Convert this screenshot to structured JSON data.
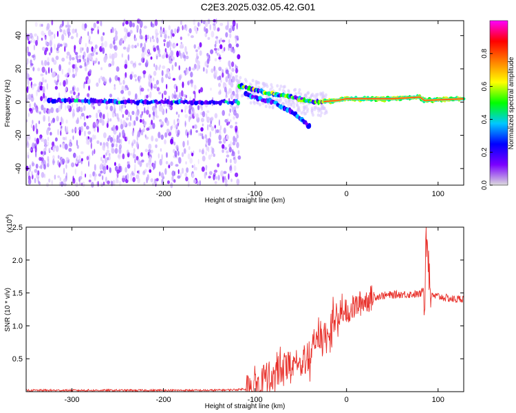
{
  "title": "C2E3.2025.032.05.42.G01",
  "chart_data": [
    {
      "type": "heatmap",
      "xlabel": "Height of straight line (km)",
      "ylabel": "Frequency (Hz)",
      "xlim": [
        -350,
        128
      ],
      "ylim": [
        -50,
        49
      ],
      "xticks": [
        -300,
        -200,
        -100,
        0,
        100
      ],
      "yticks": [
        -40,
        -20,
        0,
        20,
        40
      ],
      "grid": false,
      "noise_region_x": [
        -350,
        -117
      ],
      "tracks": [
        {
          "name": "",
          "x": [
            -325,
            -300,
            -250,
            -200,
            -170,
            -117
          ],
          "y": [
            1,
            1,
            0,
            0,
            0,
            0
          ]
        },
        {
          "name": "",
          "x": [
            -117,
            -100,
            -80,
            -60,
            -45,
            -30,
            -10,
            0,
            20,
            50,
            80,
            85,
            128
          ],
          "y": [
            10,
            7,
            5,
            3,
            1,
            0,
            1,
            2,
            2,
            2,
            3,
            1,
            2
          ]
        },
        {
          "name": "",
          "x": [
            -110,
            -95,
            -80,
            -70,
            -60,
            -50,
            -40
          ],
          "y": [
            5,
            2,
            0,
            -3,
            -6,
            -10,
            -15
          ]
        }
      ],
      "colorbar": {
        "label": "Normalized spectral amplitude",
        "ticks": [
          0.0,
          0.2,
          0.4,
          0.6,
          0.8
        ],
        "range": [
          0,
          1
        ],
        "colors": [
          "#dcdcdc",
          "#7a00ff",
          "#0000ff",
          "#00c8ff",
          "#00ff00",
          "#ffff00",
          "#ff8000",
          "#ff0000",
          "#ff00ff"
        ]
      }
    },
    {
      "type": "line",
      "xlabel": "Height of straight line (km)",
      "ylabel": "SNR (10 * v/v)",
      "scale_label": "(x10",
      "scale_exp": "4",
      "scale_close": ")",
      "xlim": [
        -350,
        128
      ],
      "ylim": [
        0,
        2.5
      ],
      "xticks": [
        -300,
        -200,
        -100,
        0,
        100
      ],
      "yticks": [
        0.5,
        1.0,
        1.5,
        2.0,
        2.5
      ],
      "grid": false,
      "color": "#e8302a",
      "series": [
        {
          "name": "",
          "x": [
            -350,
            -300,
            -250,
            -200,
            -150,
            -120,
            -105,
            -95,
            -85,
            -75,
            -65,
            -55,
            -45,
            -35,
            -25,
            -15,
            -5,
            0,
            10,
            20,
            30,
            40,
            50,
            60,
            70,
            80,
            85,
            88,
            92,
            100,
            110,
            120,
            128
          ],
          "y": [
            0.02,
            0.02,
            0.02,
            0.02,
            0.02,
            0.03,
            0.05,
            0.12,
            0.2,
            0.3,
            0.38,
            0.4,
            0.55,
            0.7,
            0.85,
            1.0,
            1.15,
            1.2,
            1.3,
            1.38,
            1.44,
            1.46,
            1.47,
            1.48,
            1.48,
            1.48,
            1.55,
            2.45,
            1.45,
            1.45,
            1.42,
            1.4,
            1.42
          ]
        }
      ]
    }
  ]
}
